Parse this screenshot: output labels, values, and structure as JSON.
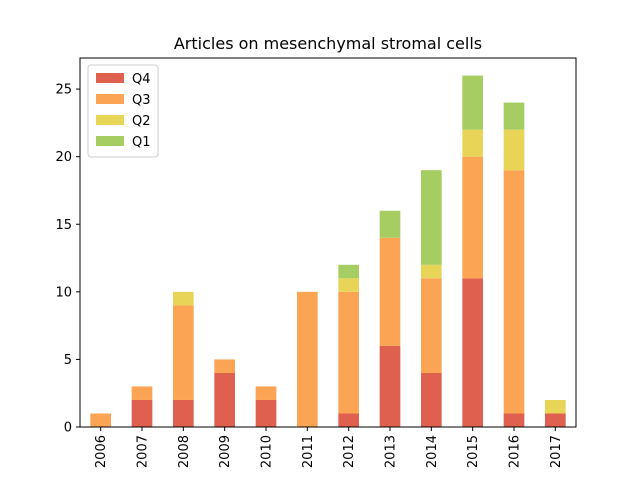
{
  "chart_data": {
    "type": "bar",
    "stacked": true,
    "title": "Articles on mesenchymal stromal cells",
    "xlabel": "",
    "ylabel": "",
    "categories": [
      "2006",
      "2007",
      "2008",
      "2009",
      "2010",
      "2011",
      "2012",
      "2013",
      "2014",
      "2015",
      "2016",
      "2017"
    ],
    "ylim": [
      0,
      27.3
    ],
    "yticks": [
      0,
      5,
      10,
      15,
      20,
      25
    ],
    "legend_position": "top-left",
    "series": [
      {
        "name": "Q4",
        "color": "#e0604f",
        "values": [
          0,
          2,
          2,
          4,
          2,
          0,
          1,
          6,
          4,
          11,
          1,
          1
        ]
      },
      {
        "name": "Q3",
        "color": "#fba453",
        "values": [
          1,
          1,
          7,
          1,
          1,
          10,
          9,
          8,
          7,
          9,
          18,
          0
        ]
      },
      {
        "name": "Q2",
        "color": "#e8d457",
        "values": [
          0,
          0,
          1,
          0,
          0,
          0,
          1,
          0,
          1,
          2,
          3,
          1
        ]
      },
      {
        "name": "Q1",
        "color": "#a6cd62",
        "values": [
          0,
          0,
          0,
          0,
          0,
          0,
          1,
          2,
          7,
          4,
          2,
          0
        ]
      }
    ]
  }
}
